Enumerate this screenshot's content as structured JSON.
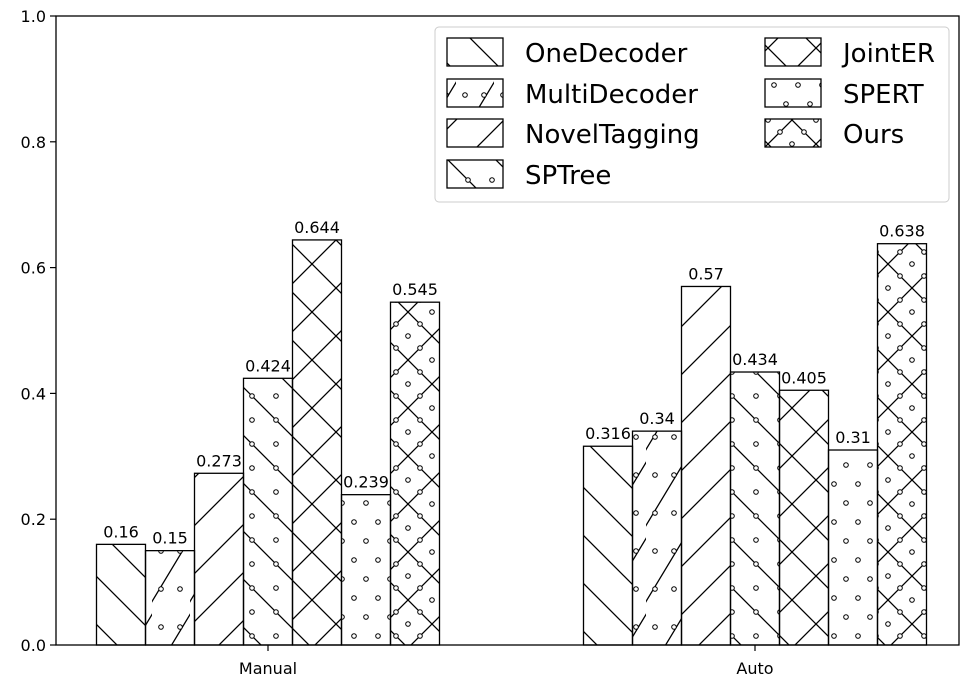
{
  "chart_data": {
    "type": "bar",
    "categories": [
      "Manual",
      "Auto"
    ],
    "series": [
      {
        "name": "OneDecoder",
        "values": [
          0.16,
          0.316
        ],
        "labels": [
          "0.16",
          "0.316"
        ],
        "pattern": "back-diagonal"
      },
      {
        "name": "MultiDecoder",
        "values": [
          0.15,
          0.34
        ],
        "labels": [
          "0.15",
          "0.34"
        ],
        "pattern": "diagonal-dots"
      },
      {
        "name": "NovelTagging",
        "values": [
          0.273,
          0.57
        ],
        "labels": [
          "0.273",
          "0.57"
        ],
        "pattern": "forward-diagonal"
      },
      {
        "name": "SPTree",
        "values": [
          0.424,
          0.434
        ],
        "labels": [
          "0.424",
          "0.434"
        ],
        "pattern": "back-diagonal-dots"
      },
      {
        "name": "JointER",
        "values": [
          0.644,
          0.405
        ],
        "labels": [
          "0.644",
          "0.405"
        ],
        "pattern": "cross"
      },
      {
        "name": "SPERT",
        "values": [
          0.239,
          0.31
        ],
        "labels": [
          "0.239",
          "0.31"
        ],
        "pattern": "dots"
      },
      {
        "name": "Ours",
        "values": [
          0.545,
          0.638
        ],
        "labels": [
          "0.545",
          "0.638"
        ],
        "pattern": "cross-dots"
      }
    ],
    "yticks": [
      "0.0",
      "0.2",
      "0.4",
      "0.6",
      "0.8",
      "1.0"
    ],
    "ylim": [
      0,
      1.0
    ],
    "grid": false,
    "legend_position": "top-right",
    "legend_columns": 2,
    "colors": {
      "bar_fill": "#ffffff",
      "bar_edge": "#000000",
      "hatch": "#000000"
    }
  }
}
